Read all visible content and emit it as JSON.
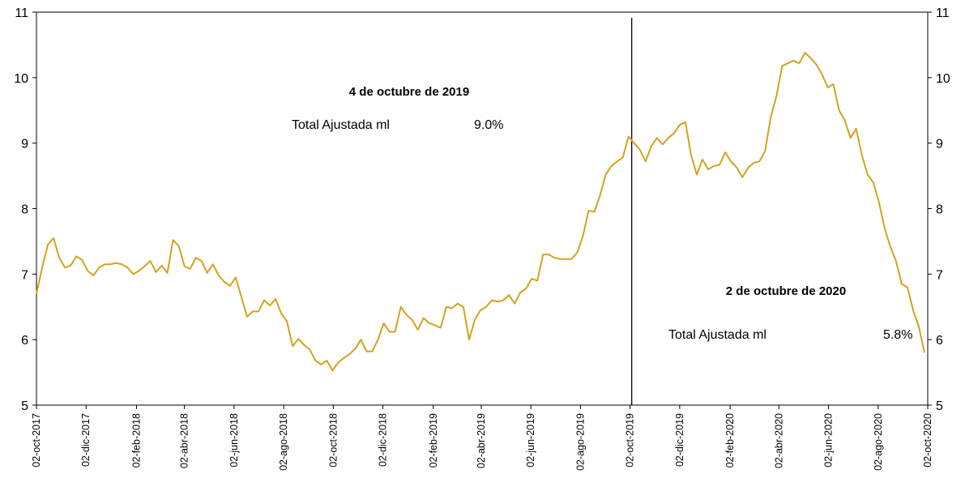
{
  "chart_data": {
    "type": "line",
    "color": "#d4a21e",
    "x": [
      "2017-10-02",
      "2017-10-09",
      "2017-10-16",
      "2017-10-23",
      "2017-10-30",
      "2017-11-06",
      "2017-11-13",
      "2017-11-20",
      "2017-11-27",
      "2017-12-04",
      "2017-12-11",
      "2017-12-18",
      "2017-12-25",
      "2018-01-01",
      "2018-01-08",
      "2018-01-15",
      "2018-01-22",
      "2018-01-29",
      "2018-02-05",
      "2018-02-12",
      "2018-02-19",
      "2018-02-26",
      "2018-03-05",
      "2018-03-12",
      "2018-03-19",
      "2018-03-26",
      "2018-04-02",
      "2018-04-09",
      "2018-04-16",
      "2018-04-23",
      "2018-04-30",
      "2018-05-07",
      "2018-05-14",
      "2018-05-21",
      "2018-05-28",
      "2018-06-04",
      "2018-06-11",
      "2018-06-18",
      "2018-06-25",
      "2018-07-02",
      "2018-07-09",
      "2018-07-16",
      "2018-07-23",
      "2018-07-30",
      "2018-08-06",
      "2018-08-13",
      "2018-08-20",
      "2018-08-27",
      "2018-09-03",
      "2018-09-10",
      "2018-09-17",
      "2018-09-24",
      "2018-10-01",
      "2018-10-08",
      "2018-10-15",
      "2018-10-22",
      "2018-10-29",
      "2018-11-05",
      "2018-11-12",
      "2018-11-19",
      "2018-11-26",
      "2018-12-03",
      "2018-12-10",
      "2018-12-17",
      "2018-12-24",
      "2018-12-31",
      "2019-01-07",
      "2019-01-14",
      "2019-01-21",
      "2019-01-28",
      "2019-02-04",
      "2019-02-11",
      "2019-02-18",
      "2019-02-25",
      "2019-03-04",
      "2019-03-11",
      "2019-03-18",
      "2019-03-25",
      "2019-04-01",
      "2019-04-08",
      "2019-04-15",
      "2019-04-22",
      "2019-04-29",
      "2019-05-06",
      "2019-05-13",
      "2019-05-20",
      "2019-05-27",
      "2019-06-03",
      "2019-06-10",
      "2019-06-17",
      "2019-06-24",
      "2019-07-01",
      "2019-07-08",
      "2019-07-15",
      "2019-07-22",
      "2019-07-29",
      "2019-08-05",
      "2019-08-12",
      "2019-08-19",
      "2019-08-26",
      "2019-09-02",
      "2019-09-09",
      "2019-09-16",
      "2019-09-23",
      "2019-09-30",
      "2019-10-07",
      "2019-10-14",
      "2019-10-21",
      "2019-10-28",
      "2019-11-04",
      "2019-11-11",
      "2019-11-18",
      "2019-11-25",
      "2019-12-02",
      "2019-12-09",
      "2019-12-16",
      "2019-12-23",
      "2019-12-30",
      "2020-01-06",
      "2020-01-13",
      "2020-01-20",
      "2020-01-27",
      "2020-02-03",
      "2020-02-10",
      "2020-02-17",
      "2020-02-24",
      "2020-03-02",
      "2020-03-09",
      "2020-03-16",
      "2020-03-23",
      "2020-03-30",
      "2020-04-06",
      "2020-04-13",
      "2020-04-20",
      "2020-04-27",
      "2020-05-04",
      "2020-05-11",
      "2020-05-18",
      "2020-05-25",
      "2020-06-01",
      "2020-06-08",
      "2020-06-15",
      "2020-06-22",
      "2020-06-29",
      "2020-07-06",
      "2020-07-13",
      "2020-07-20",
      "2020-07-27",
      "2020-08-03",
      "2020-08-10",
      "2020-08-17",
      "2020-08-24",
      "2020-08-31",
      "2020-09-07",
      "2020-09-14",
      "2020-09-21",
      "2020-09-28"
    ],
    "values": [
      6.7,
      7.1,
      7.45,
      7.55,
      7.25,
      7.1,
      7.13,
      7.27,
      7.22,
      7.05,
      6.98,
      7.1,
      7.15,
      7.15,
      7.17,
      7.15,
      7.1,
      7.0,
      7.05,
      7.12,
      7.2,
      7.03,
      7.13,
      7.02,
      7.52,
      7.43,
      7.12,
      7.08,
      7.25,
      7.2,
      7.02,
      7.15,
      6.98,
      6.88,
      6.82,
      6.95,
      6.65,
      6.35,
      6.43,
      6.43,
      6.6,
      6.52,
      6.62,
      6.4,
      6.28,
      5.9,
      6.01,
      5.92,
      5.85,
      5.68,
      5.62,
      5.68,
      5.53,
      5.65,
      5.72,
      5.78,
      5.86,
      6.0,
      5.82,
      5.82,
      6.0,
      6.25,
      6.12,
      6.12,
      6.5,
      6.38,
      6.3,
      6.15,
      6.33,
      6.25,
      6.22,
      6.18,
      6.5,
      6.48,
      6.55,
      6.5,
      6.0,
      6.3,
      6.45,
      6.5,
      6.6,
      6.58,
      6.6,
      6.68,
      6.55,
      6.72,
      6.78,
      6.93,
      6.9,
      7.3,
      7.3,
      7.25,
      7.23,
      7.23,
      7.23,
      7.33,
      7.58,
      7.97,
      7.95,
      8.2,
      8.52,
      8.65,
      8.72,
      8.78,
      9.1,
      9.0,
      8.9,
      8.72,
      8.95,
      9.08,
      8.98,
      9.08,
      9.15,
      9.28,
      9.32,
      8.82,
      8.52,
      8.75,
      8.6,
      8.65,
      8.67,
      8.86,
      8.72,
      8.63,
      8.48,
      8.62,
      8.7,
      8.72,
      8.88,
      9.4,
      9.72,
      10.18,
      10.22,
      10.26,
      10.22,
      10.38,
      10.3,
      10.2,
      10.05,
      9.85,
      9.9,
      9.5,
      9.35,
      9.08,
      9.22,
      8.82,
      8.52,
      8.4,
      8.1,
      7.7,
      7.42,
      7.2,
      6.85,
      6.8,
      6.45,
      6.2,
      5.8
    ],
    "xlim": [
      "2017-10-02",
      "2020-10-02"
    ],
    "xticks": [
      {
        "value": "2017-10-02",
        "label": "02-oct-2017"
      },
      {
        "value": "2017-12-02",
        "label": "02-dic-2017"
      },
      {
        "value": "2018-02-02",
        "label": "02-feb-2018"
      },
      {
        "value": "2018-04-02",
        "label": "02-abr-2018"
      },
      {
        "value": "2018-06-02",
        "label": "02-jun-2018"
      },
      {
        "value": "2018-08-02",
        "label": "02-ago-2018"
      },
      {
        "value": "2018-10-02",
        "label": "02-oct-2018"
      },
      {
        "value": "2018-12-02",
        "label": "02-dic-2018"
      },
      {
        "value": "2019-02-02",
        "label": "02-feb-2019"
      },
      {
        "value": "2019-04-02",
        "label": "02-abr-2019"
      },
      {
        "value": "2019-06-02",
        "label": "02-jun-2019"
      },
      {
        "value": "2019-08-02",
        "label": "02-ago-2019"
      },
      {
        "value": "2019-10-02",
        "label": "02-oct-2019"
      },
      {
        "value": "2019-12-02",
        "label": "02-dic-2019"
      },
      {
        "value": "2020-02-02",
        "label": "02-feb-2020"
      },
      {
        "value": "2020-04-02",
        "label": "02-abr-2020"
      },
      {
        "value": "2020-06-02",
        "label": "02-jun-2020"
      },
      {
        "value": "2020-08-02",
        "label": "02-ago-2020"
      },
      {
        "value": "2020-10-02",
        "label": "02-oct-2020"
      }
    ],
    "ylim": [
      5,
      11
    ],
    "yticks": [
      5,
      6,
      7,
      8,
      9,
      10,
      11
    ],
    "y2lim": [
      5,
      11
    ],
    "y2ticks": [
      5,
      6,
      7,
      8,
      9,
      10,
      11
    ],
    "vline": "2019-10-04",
    "annotations": [
      {
        "title": "4 de octubre de 2019",
        "text": "Total Ajustada ml",
        "value": 9.0,
        "value_label": "9.0%"
      },
      {
        "title": "2 de octubre de 2020",
        "text": "Total Ajustada ml",
        "value": 5.8,
        "value_label": "5.8%"
      }
    ]
  }
}
